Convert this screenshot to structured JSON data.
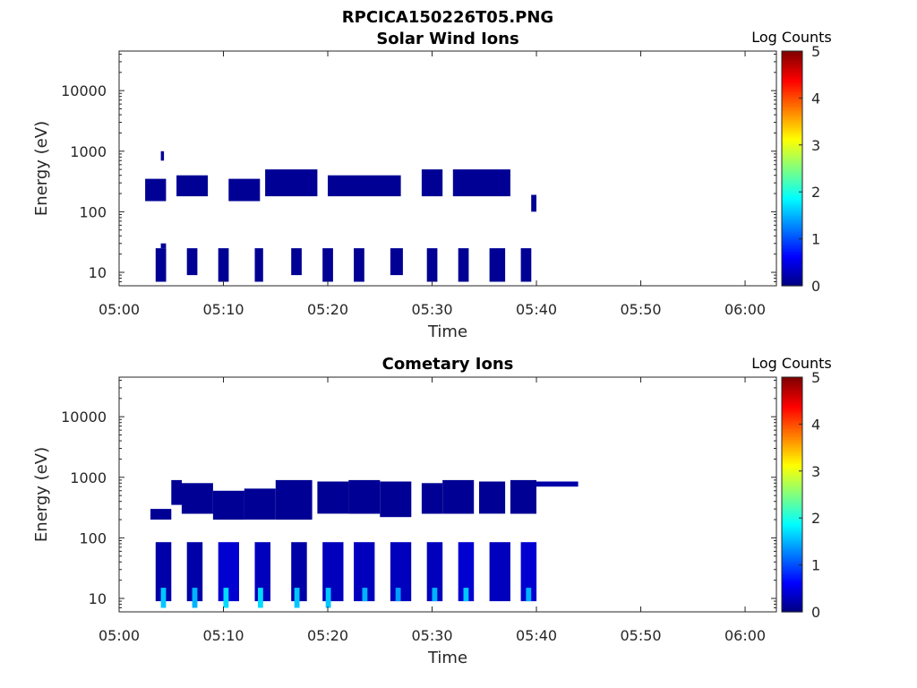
{
  "figure": {
    "title": "RPCICA150226T05.PNG"
  },
  "chart_data": [
    {
      "type": "heatmap",
      "title": "Solar Wind Ions",
      "xlabel": "Time",
      "ylabel": "Energy (eV)",
      "x_range": [
        "05:00",
        "06:03"
      ],
      "x_ticks": [
        "05:00",
        "05:10",
        "05:20",
        "05:30",
        "05:40",
        "05:50",
        "06:00"
      ],
      "y_scale": "log",
      "y_range": [
        6,
        45000
      ],
      "y_ticks": [
        "10",
        "100",
        "1000",
        "10000"
      ],
      "colorbar": {
        "label": "Log Counts",
        "range": [
          0,
          5
        ],
        "ticks": [
          "0",
          "1",
          "2",
          "3",
          "4",
          "5"
        ],
        "colormap": "jet"
      },
      "grid": false,
      "cells": [
        {
          "t0": "05:03.5",
          "t1": "05:04.5",
          "e_lo": 7,
          "e_hi": 25,
          "log_counts": 0.1
        },
        {
          "t0": "05:04.0",
          "t1": "05:04.5",
          "e_lo": 25,
          "e_hi": 30,
          "log_counts": 0.1
        },
        {
          "t0": "05:06.5",
          "t1": "05:07.5",
          "e_lo": 9,
          "e_hi": 25,
          "log_counts": 0.1
        },
        {
          "t0": "05:09.5",
          "t1": "05:10.5",
          "e_lo": 7,
          "e_hi": 25,
          "log_counts": 0.1
        },
        {
          "t0": "05:13.0",
          "t1": "05:13.8",
          "e_lo": 7,
          "e_hi": 25,
          "log_counts": 0.1
        },
        {
          "t0": "05:16.5",
          "t1": "05:17.5",
          "e_lo": 9,
          "e_hi": 25,
          "log_counts": 0.1
        },
        {
          "t0": "05:19.5",
          "t1": "05:20.5",
          "e_lo": 7,
          "e_hi": 25,
          "log_counts": 0.1
        },
        {
          "t0": "05:22.5",
          "t1": "05:23.5",
          "e_lo": 7,
          "e_hi": 25,
          "log_counts": 0.1
        },
        {
          "t0": "05:26.0",
          "t1": "05:27.2",
          "e_lo": 9,
          "e_hi": 25,
          "log_counts": 0.1
        },
        {
          "t0": "05:29.5",
          "t1": "05:30.5",
          "e_lo": 7,
          "e_hi": 25,
          "log_counts": 0.1
        },
        {
          "t0": "05:32.5",
          "t1": "05:33.5",
          "e_lo": 7,
          "e_hi": 25,
          "log_counts": 0.1
        },
        {
          "t0": "05:35.5",
          "t1": "05:37.0",
          "e_lo": 7,
          "e_hi": 25,
          "log_counts": 0.1
        },
        {
          "t0": "05:38.5",
          "t1": "05:39.5",
          "e_lo": 7,
          "e_hi": 25,
          "log_counts": 0.1
        },
        {
          "t0": "05:02.5",
          "t1": "05:04.5",
          "e_lo": 150,
          "e_hi": 350,
          "log_counts": 0.1
        },
        {
          "t0": "05:04.0",
          "t1": "05:04.3",
          "e_lo": 700,
          "e_hi": 1000,
          "log_counts": 0.1
        },
        {
          "t0": "05:05.5",
          "t1": "05:08.5",
          "e_lo": 180,
          "e_hi": 400,
          "log_counts": 0.1
        },
        {
          "t0": "05:10.5",
          "t1": "05:13.5",
          "e_lo": 150,
          "e_hi": 350,
          "log_counts": 0.1
        },
        {
          "t0": "05:14.0",
          "t1": "05:19.0",
          "e_lo": 180,
          "e_hi": 500,
          "log_counts": 0.1
        },
        {
          "t0": "05:20.0",
          "t1": "05:27.0",
          "e_lo": 180,
          "e_hi": 400,
          "log_counts": 0.1
        },
        {
          "t0": "05:29.0",
          "t1": "05:31.0",
          "e_lo": 180,
          "e_hi": 500,
          "log_counts": 0.1
        },
        {
          "t0": "05:32.0",
          "t1": "05:37.5",
          "e_lo": 180,
          "e_hi": 500,
          "log_counts": 0.1
        },
        {
          "t0": "05:39.5",
          "t1": "05:40.0",
          "e_lo": 100,
          "e_hi": 190,
          "log_counts": 0.1
        }
      ]
    },
    {
      "type": "heatmap",
      "title": "Cometary Ions",
      "xlabel": "Time",
      "ylabel": "Energy (eV)",
      "x_range": [
        "05:00",
        "06:03"
      ],
      "x_ticks": [
        "05:00",
        "05:10",
        "05:20",
        "05:30",
        "05:40",
        "05:50",
        "06:00"
      ],
      "y_scale": "log",
      "y_range": [
        6,
        45000
      ],
      "y_ticks": [
        "10",
        "100",
        "1000",
        "10000"
      ],
      "colorbar": {
        "label": "Log Counts",
        "range": [
          0,
          5
        ],
        "ticks": [
          "0",
          "1",
          "2",
          "3",
          "4",
          "5"
        ],
        "colormap": "jet"
      },
      "grid": false,
      "cells": [
        {
          "t0": "05:03.0",
          "t1": "05:05.0",
          "e_lo": 200,
          "e_hi": 300,
          "log_counts": 0.1
        },
        {
          "t0": "05:05.0",
          "t1": "05:06.0",
          "e_lo": 350,
          "e_hi": 900,
          "log_counts": 0.1
        },
        {
          "t0": "05:06.0",
          "t1": "05:09.0",
          "e_lo": 250,
          "e_hi": 800,
          "log_counts": 0.1
        },
        {
          "t0": "05:09.0",
          "t1": "05:12.0",
          "e_lo": 200,
          "e_hi": 600,
          "log_counts": 0.1
        },
        {
          "t0": "05:12.0",
          "t1": "05:15.0",
          "e_lo": 200,
          "e_hi": 650,
          "log_counts": 0.1
        },
        {
          "t0": "05:15.0",
          "t1": "05:18.5",
          "e_lo": 200,
          "e_hi": 900,
          "log_counts": 0.1
        },
        {
          "t0": "05:19.0",
          "t1": "05:22.0",
          "e_lo": 250,
          "e_hi": 850,
          "log_counts": 0.1
        },
        {
          "t0": "05:22.0",
          "t1": "05:25.0",
          "e_lo": 250,
          "e_hi": 900,
          "log_counts": 0.1
        },
        {
          "t0": "05:25.0",
          "t1": "05:28.0",
          "e_lo": 220,
          "e_hi": 850,
          "log_counts": 0.1
        },
        {
          "t0": "05:29.0",
          "t1": "05:31.0",
          "e_lo": 250,
          "e_hi": 800,
          "log_counts": 0.1
        },
        {
          "t0": "05:31.0",
          "t1": "05:34.0",
          "e_lo": 250,
          "e_hi": 900,
          "log_counts": 0.1
        },
        {
          "t0": "05:34.5",
          "t1": "05:37.0",
          "e_lo": 250,
          "e_hi": 850,
          "log_counts": 0.1
        },
        {
          "t0": "05:37.5",
          "t1": "05:40.0",
          "e_lo": 250,
          "e_hi": 900,
          "log_counts": 0.1
        },
        {
          "t0": "05:40.0",
          "t1": "05:44.0",
          "e_lo": 700,
          "e_hi": 850,
          "log_counts": 0.2
        },
        {
          "t0": "05:03.5",
          "t1": "05:05.0",
          "e_lo": 9,
          "e_hi": 85,
          "log_counts": 0.2
        },
        {
          "t0": "05:04.0",
          "t1": "05:04.5",
          "e_lo": 7,
          "e_hi": 15,
          "log_counts": 1.6
        },
        {
          "t0": "05:06.5",
          "t1": "05:08.0",
          "e_lo": 9,
          "e_hi": 85,
          "log_counts": 0.2
        },
        {
          "t0": "05:07.0",
          "t1": "05:07.5",
          "e_lo": 7,
          "e_hi": 15,
          "log_counts": 1.5
        },
        {
          "t0": "05:09.5",
          "t1": "05:11.5",
          "e_lo": 9,
          "e_hi": 85,
          "log_counts": 0.4
        },
        {
          "t0": "05:10.0",
          "t1": "05:10.5",
          "e_lo": 7,
          "e_hi": 15,
          "log_counts": 1.7
        },
        {
          "t0": "05:13.0",
          "t1": "05:14.5",
          "e_lo": 9,
          "e_hi": 85,
          "log_counts": 0.3
        },
        {
          "t0": "05:13.3",
          "t1": "05:13.8",
          "e_lo": 7,
          "e_hi": 15,
          "log_counts": 1.7
        },
        {
          "t0": "05:16.5",
          "t1": "05:18.0",
          "e_lo": 9,
          "e_hi": 85,
          "log_counts": 0.2
        },
        {
          "t0": "05:16.8",
          "t1": "05:17.3",
          "e_lo": 7,
          "e_hi": 15,
          "log_counts": 1.6
        },
        {
          "t0": "05:19.5",
          "t1": "05:21.5",
          "e_lo": 9,
          "e_hi": 85,
          "log_counts": 0.3
        },
        {
          "t0": "05:19.8",
          "t1": "05:20.3",
          "e_lo": 7,
          "e_hi": 15,
          "log_counts": 1.6
        },
        {
          "t0": "05:22.5",
          "t1": "05:24.5",
          "e_lo": 9,
          "e_hi": 85,
          "log_counts": 0.3
        },
        {
          "t0": "05:23.3",
          "t1": "05:23.8",
          "e_lo": 9,
          "e_hi": 15,
          "log_counts": 1.5
        },
        {
          "t0": "05:26.0",
          "t1": "05:28.0",
          "e_lo": 9,
          "e_hi": 85,
          "log_counts": 0.3
        },
        {
          "t0": "05:26.5",
          "t1": "05:27.0",
          "e_lo": 9,
          "e_hi": 15,
          "log_counts": 1.4
        },
        {
          "t0": "05:29.5",
          "t1": "05:31.0",
          "e_lo": 9,
          "e_hi": 85,
          "log_counts": 0.3
        },
        {
          "t0": "05:30.0",
          "t1": "05:30.5",
          "e_lo": 9,
          "e_hi": 15,
          "log_counts": 1.5
        },
        {
          "t0": "05:32.5",
          "t1": "05:34.0",
          "e_lo": 9,
          "e_hi": 85,
          "log_counts": 0.4
        },
        {
          "t0": "05:33.0",
          "t1": "05:33.5",
          "e_lo": 9,
          "e_hi": 15,
          "log_counts": 1.6
        },
        {
          "t0": "05:35.5",
          "t1": "05:37.5",
          "e_lo": 9,
          "e_hi": 85,
          "log_counts": 0.3
        },
        {
          "t0": "05:38.5",
          "t1": "05:40.0",
          "e_lo": 9,
          "e_hi": 85,
          "log_counts": 0.4
        },
        {
          "t0": "05:39.0",
          "t1": "05:39.5",
          "e_lo": 9,
          "e_hi": 15,
          "log_counts": 1.5
        }
      ]
    }
  ]
}
